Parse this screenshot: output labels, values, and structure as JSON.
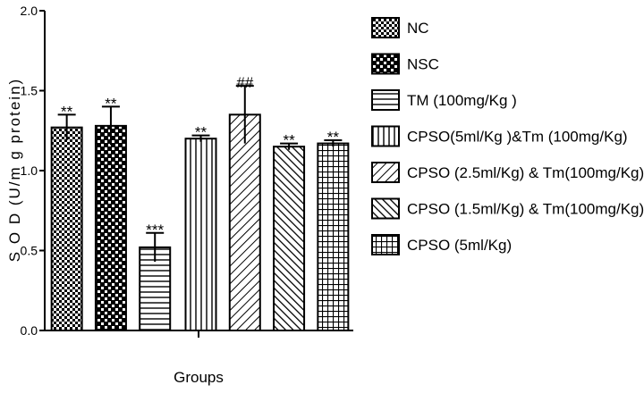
{
  "chart_data": {
    "type": "bar",
    "title": "",
    "xlabel": "Groups",
    "ylabel": "S O D (U/m g protein)",
    "ylim": [
      0,
      2.0
    ],
    "yticks": [
      "0.0",
      "0.5",
      "1.0",
      "1.5",
      "2.0"
    ],
    "grid": false,
    "legend_position": "right",
    "categories": [
      "NC",
      "NSC",
      "TM (100mg/Kg )",
      "CPSO(5ml/Kg )&Tm (100mg/Kg)",
      "CPSO (2.5ml/Kg) & Tm(100mg/Kg)",
      "CPSO (1.5ml/Kg) & Tm(100mg/Kg)",
      "CPSO (5ml/Kg)"
    ],
    "values": [
      1.27,
      1.28,
      0.52,
      1.2,
      1.35,
      1.15,
      1.17
    ],
    "errors": [
      0.08,
      0.12,
      0.09,
      0.02,
      0.18,
      0.02,
      0.02
    ],
    "annotations": [
      "**",
      "**",
      "***",
      "**",
      "##",
      "**",
      "**"
    ],
    "patterns": [
      "checker-fine",
      "checker-coarse",
      "horizontal",
      "vertical",
      "diagonal-right",
      "diagonal-left",
      "grid"
    ]
  }
}
